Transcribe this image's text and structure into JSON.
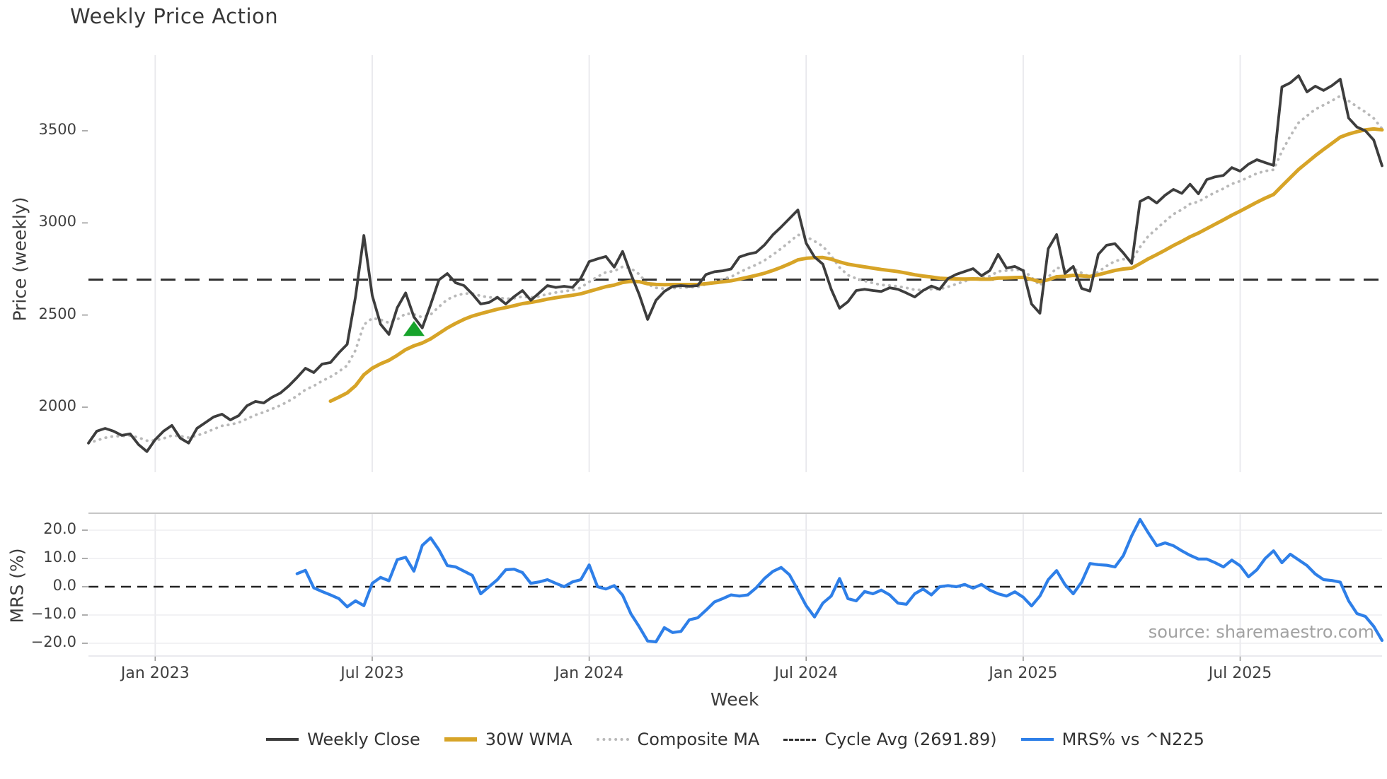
{
  "page": {
    "title": "Weekly Price Action",
    "source_note": "source: sharemaestro.com"
  },
  "colors": {
    "close": "#3d3d3d",
    "wma": "#d7a427",
    "composite": "#b9b9b9",
    "cycle_avg": "#2f2f2f",
    "mrs": "#2e7fe8",
    "marker_green": "#17a32b",
    "grid": "#e8e8ec",
    "text": "#3a3a3a"
  },
  "legend": {
    "items": [
      {
        "label": "Weekly Close",
        "color": "#3d3d3d",
        "style": "solid"
      },
      {
        "label": "30W WMA",
        "color": "#d7a427",
        "style": "solid-thick"
      },
      {
        "label": "Composite MA",
        "color": "#b9b9b9",
        "style": "dotted"
      },
      {
        "label": "Cycle Avg (2691.89)",
        "color": "#2f2f2f",
        "style": "dashed"
      },
      {
        "label": "MRS% vs ^N225",
        "color": "#2e7fe8",
        "style": "solid"
      }
    ]
  },
  "chart_data": [
    {
      "type": "line",
      "panel": "price",
      "title": "Weekly Price Action",
      "xlabel": "Week",
      "ylabel": "Price (weekly)",
      "ylim": [
        1650,
        3910
      ],
      "yticks": [
        3500,
        3000,
        2500,
        2000
      ],
      "grid": "vertical-only",
      "x_unit": "weekly index, Nov 2022 through Nov 2025",
      "n_points": 156,
      "xtick_indices": [
        8,
        34,
        60,
        86,
        112,
        138
      ],
      "xtick_labels": [
        "Jan 2023",
        "Jul 2023",
        "Jan 2024",
        "Jul 2024",
        "Jan 2025",
        "Jul 2025"
      ],
      "cycle_avg_value": 2691.89,
      "marker": {
        "type": "triangle-up",
        "index": 39,
        "price": 2425,
        "color": "#17a32b"
      },
      "series": [
        {
          "name": "Weekly Close",
          "style": "solid",
          "values": [
            1805,
            1870,
            1885,
            1870,
            1847,
            1855,
            1797,
            1759,
            1824,
            1870,
            1901,
            1832,
            1805,
            1885,
            1916,
            1947,
            1962,
            1931,
            1954,
            2008,
            2031,
            2023,
            2054,
            2077,
            2115,
            2161,
            2211,
            2188,
            2234,
            2242,
            2295,
            2341,
            2600,
            2932,
            2606,
            2450,
            2395,
            2540,
            2620,
            2490,
            2430,
            2556,
            2691,
            2725,
            2675,
            2660,
            2614,
            2560,
            2568,
            2596,
            2560,
            2600,
            2633,
            2580,
            2620,
            2660,
            2650,
            2656,
            2650,
            2700,
            2790,
            2805,
            2818,
            2760,
            2845,
            2722,
            2610,
            2476,
            2580,
            2628,
            2655,
            2660,
            2656,
            2660,
            2720,
            2735,
            2740,
            2750,
            2815,
            2830,
            2840,
            2880,
            2935,
            2978,
            3024,
            3070,
            2890,
            2815,
            2776,
            2640,
            2537,
            2572,
            2633,
            2640,
            2633,
            2628,
            2648,
            2640,
            2620,
            2598,
            2633,
            2657,
            2640,
            2698,
            2721,
            2736,
            2752,
            2713,
            2741,
            2829,
            2755,
            2764,
            2741,
            2560,
            2510,
            2860,
            2937,
            2726,
            2764,
            2645,
            2630,
            2829,
            2879,
            2887,
            2837,
            2780,
            3116,
            3140,
            3108,
            3150,
            3182,
            3160,
            3210,
            3158,
            3235,
            3250,
            3258,
            3300,
            3281,
            3319,
            3343,
            3327,
            3312,
            3738,
            3760,
            3799,
            3711,
            3742,
            3719,
            3745,
            3780,
            3569,
            3520,
            3500,
            3450,
            3310
          ]
        },
        {
          "name": "30W WMA",
          "style": "solid-thick",
          "derived": "wma30_of_weekly_close"
        },
        {
          "name": "Composite MA",
          "style": "dotted",
          "derived": "ema8_of_weekly_close"
        },
        {
          "name": "Cycle Avg (2691.89)",
          "style": "dashed",
          "constant": 2691.89
        }
      ]
    },
    {
      "type": "line",
      "panel": "mrs",
      "ylabel": "MRS (%)",
      "ylim": [
        -23.5,
        25.5
      ],
      "yticks": [
        20.0,
        10.0,
        0.0,
        -10.0,
        -20.0
      ],
      "zero_line": 0,
      "series": [
        {
          "name": "MRS% vs ^N225",
          "style": "solid",
          "values": [
            null,
            null,
            null,
            null,
            null,
            null,
            null,
            null,
            null,
            null,
            null,
            null,
            null,
            null,
            null,
            null,
            null,
            null,
            null,
            null,
            null,
            null,
            null,
            null,
            null,
            4.6,
            5.8,
            -0.4,
            -1.7,
            -2.9,
            -4.2,
            -7.1,
            -5.0,
            -6.7,
            1.2,
            3.3,
            2.1,
            9.6,
            10.4,
            5.5,
            14.6,
            17.3,
            13.0,
            7.5,
            7.0,
            5.5,
            4.0,
            -2.5,
            0.0,
            2.5,
            6.0,
            6.2,
            5.0,
            1.2,
            1.7,
            2.5,
            1.2,
            0.0,
            1.7,
            2.5,
            7.7,
            0.0,
            -0.8,
            0.4,
            -3.0,
            -9.6,
            -14.2,
            -19.2,
            -19.5,
            -14.5,
            -16.2,
            -15.8,
            -11.7,
            -11.0,
            -8.3,
            -5.4,
            -4.2,
            -2.9,
            -3.3,
            -2.9,
            -0.4,
            2.9,
            5.4,
            6.8,
            4.2,
            -1.2,
            -6.7,
            -10.7,
            -5.8,
            -3.3,
            2.9,
            -4.2,
            -5.0,
            -1.7,
            -2.5,
            -1.2,
            -2.9,
            -5.8,
            -6.2,
            -2.5,
            -0.8,
            -2.9,
            0.0,
            0.4,
            0.0,
            0.8,
            -0.5,
            0.8,
            -1.2,
            -2.5,
            -3.3,
            -1.8,
            -3.7,
            -6.8,
            -3.3,
            2.5,
            5.7,
            0.8,
            -2.5,
            1.6,
            8.2,
            7.8,
            7.6,
            7.0,
            11.0,
            18.0,
            23.8,
            19.0,
            14.5,
            15.5,
            14.5,
            12.7,
            11.1,
            9.8,
            9.8,
            8.5,
            7.0,
            9.4,
            7.4,
            3.5,
            6.0,
            10.0,
            12.7,
            8.5,
            11.5,
            9.5,
            7.5,
            4.5,
            2.5,
            2.2,
            1.6,
            -5.0,
            -9.5,
            -10.5,
            -14.0,
            -19.0
          ]
        }
      ]
    }
  ]
}
